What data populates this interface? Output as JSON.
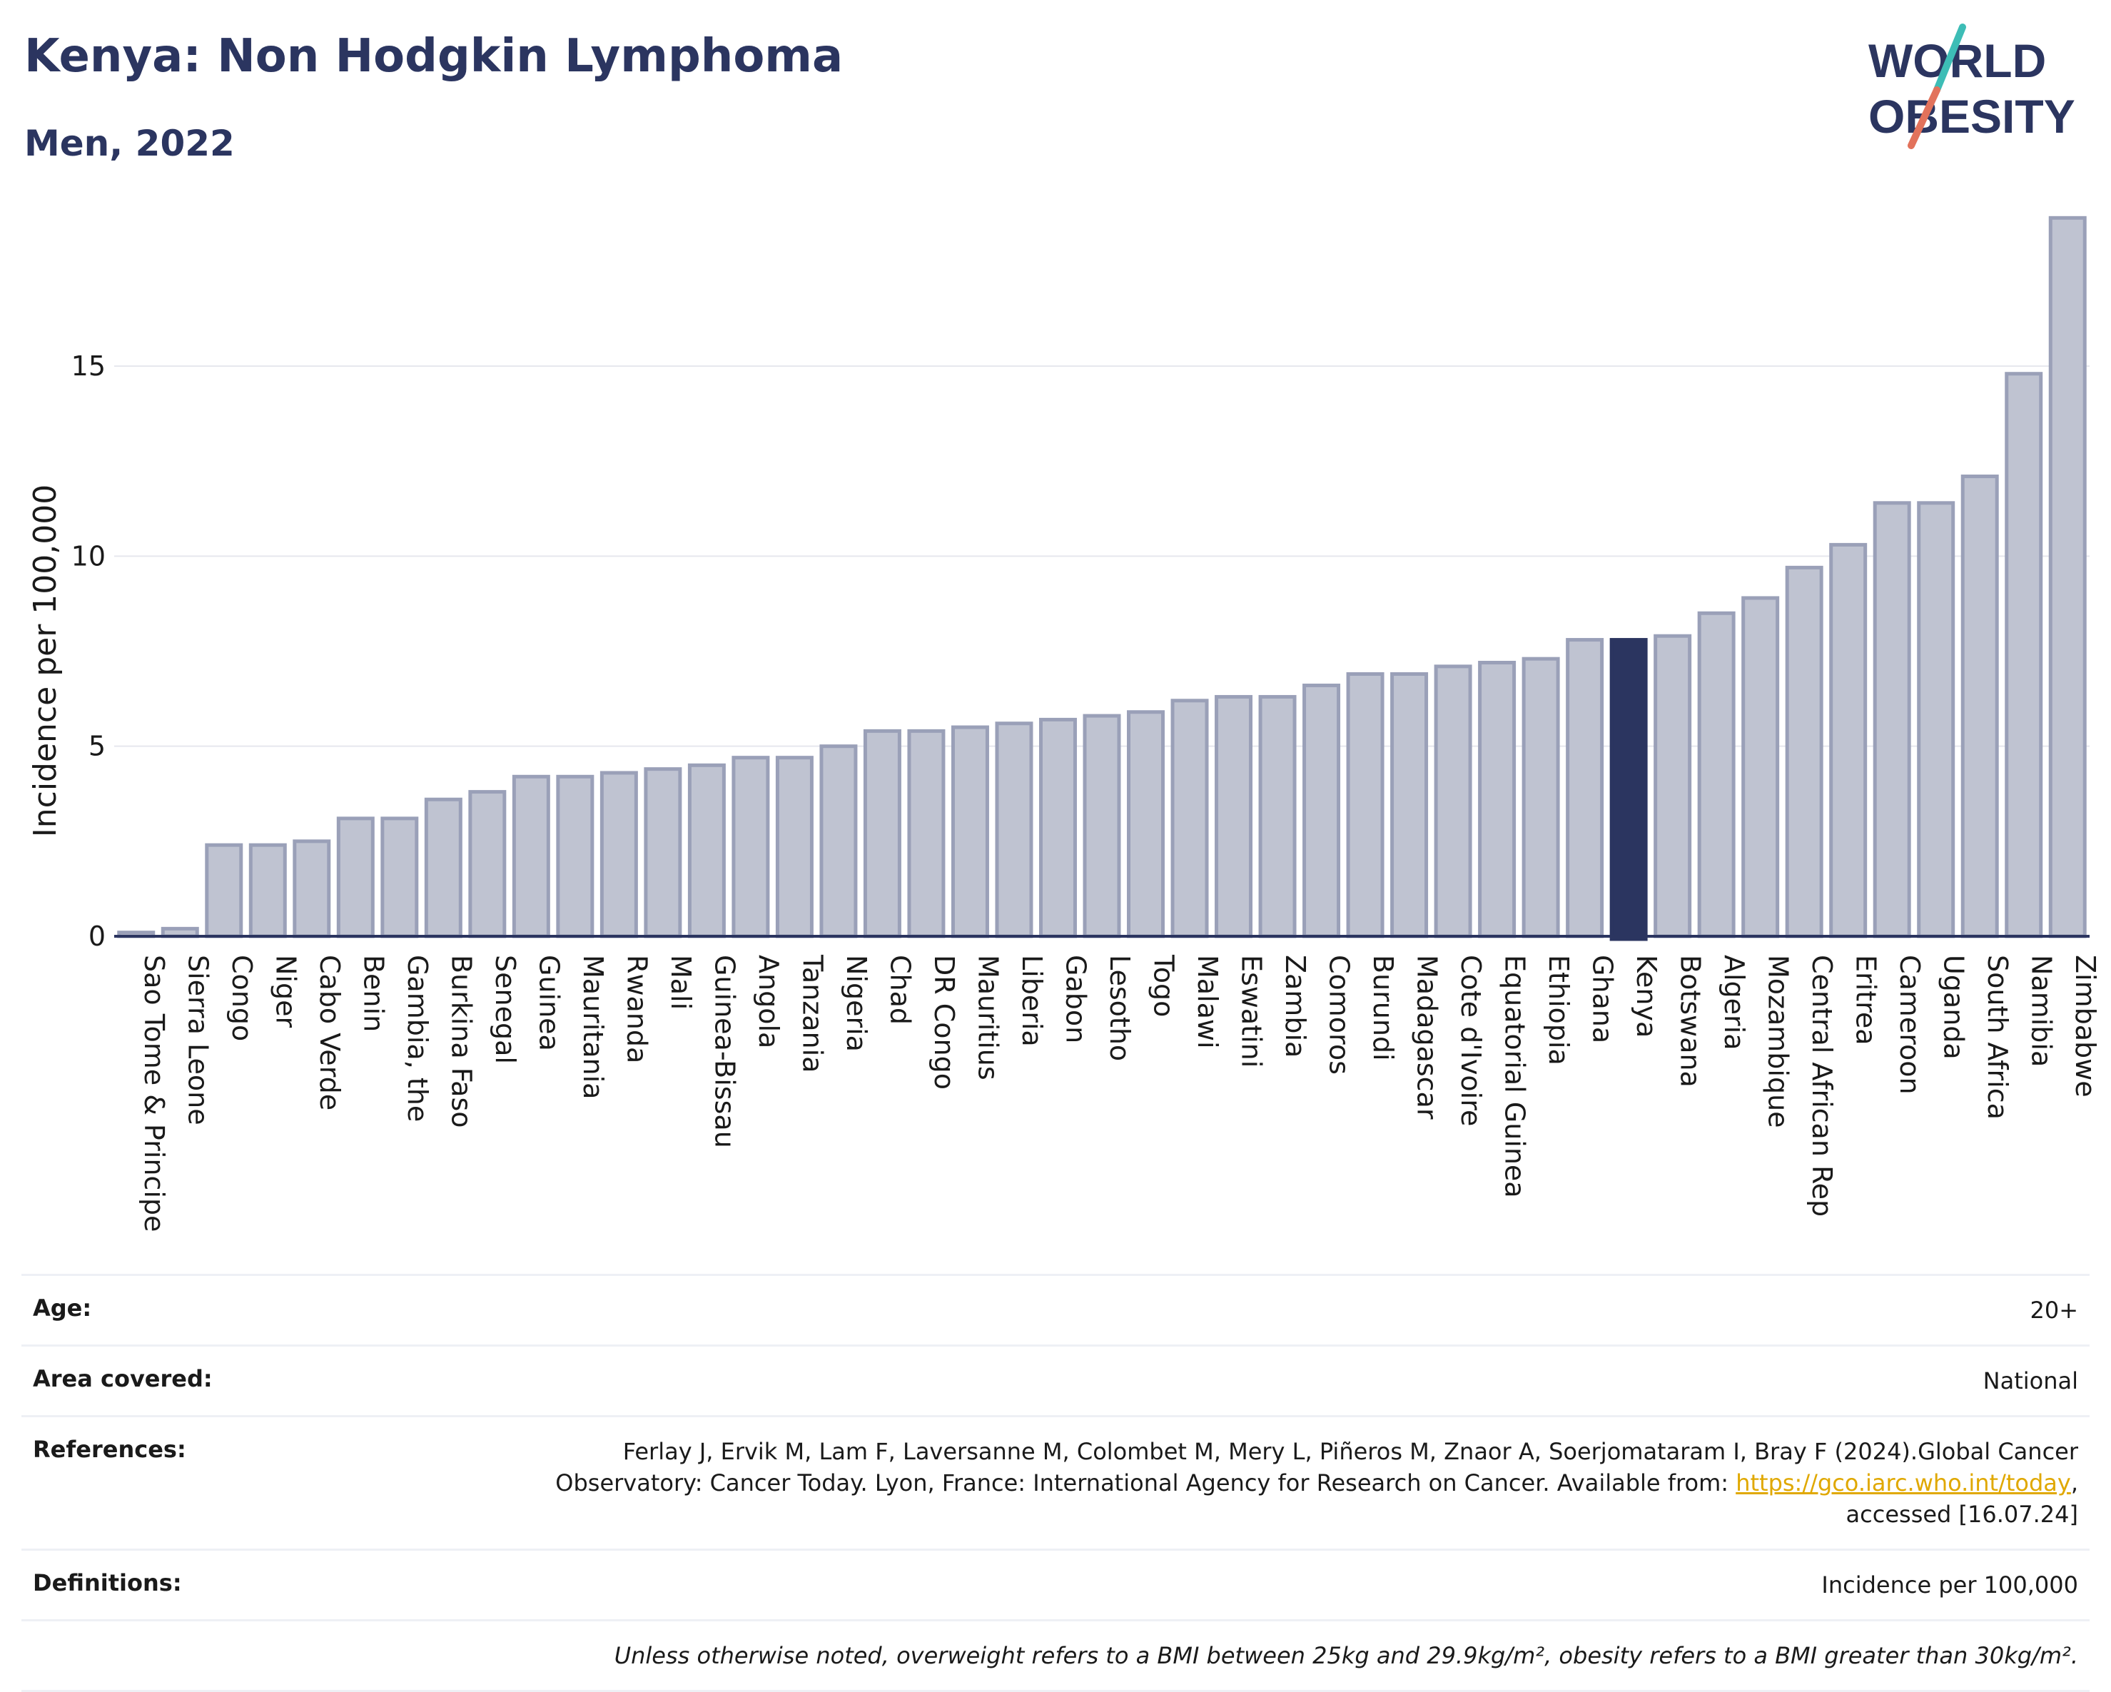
{
  "header": {
    "title": "Kenya: Non Hodgkin Lymphoma",
    "subtitle": "Men, 2022"
  },
  "logo": {
    "text_line1": "WORLD",
    "text_line2": "OBESITY",
    "colors": {
      "text": "#2b3560",
      "slash_top": "#3dbdb6",
      "slash_bottom": "#e2725b"
    }
  },
  "colors": {
    "bar_fill": "#bfc3d1",
    "bar_stroke": "#9aa0b8",
    "highlight_fill": "#2b3560",
    "axis": "#2b3560",
    "grid": "#e6e8ee"
  },
  "chart_data": {
    "type": "bar",
    "ylabel": "Incidence per 100,000",
    "ylim": [
      0,
      19
    ],
    "yticks": [
      0,
      5,
      10,
      15
    ],
    "grid": true,
    "highlight": "Kenya",
    "categories": [
      "Sao Tome & Principe",
      "Sierra Leone",
      "Congo",
      "Niger",
      "Cabo Verde",
      "Benin",
      "Gambia, the",
      "Burkina Faso",
      "Senegal",
      "Guinea",
      "Mauritania",
      "Rwanda",
      "Mali",
      "Guinea-Bissau",
      "Angola",
      "Tanzania",
      "Nigeria",
      "Chad",
      "DR Congo",
      "Mauritius",
      "Liberia",
      "Gabon",
      "Lesotho",
      "Togo",
      "Malawi",
      "Eswatini",
      "Zambia",
      "Comoros",
      "Burundi",
      "Madagascar",
      "Cote d'Ivoire",
      "Equatorial Guinea",
      "Ethiopia",
      "Ghana",
      "Kenya",
      "Botswana",
      "Algeria",
      "Mozambique",
      "Central African Rep",
      "Eritrea",
      "Cameroon",
      "Uganda",
      "South Africa",
      "Namibia",
      "Zimbabwe"
    ],
    "values": [
      0.1,
      0.2,
      2.4,
      2.4,
      2.5,
      3.1,
      3.1,
      3.6,
      3.8,
      4.2,
      4.2,
      4.3,
      4.4,
      4.5,
      4.7,
      4.7,
      5.0,
      5.4,
      5.4,
      5.5,
      5.6,
      5.7,
      5.8,
      5.9,
      6.2,
      6.3,
      6.3,
      6.6,
      6.9,
      6.9,
      7.1,
      7.2,
      7.3,
      7.8,
      7.8,
      7.9,
      8.5,
      8.9,
      9.7,
      10.3,
      11.4,
      11.4,
      12.1,
      14.8,
      18.9
    ]
  },
  "info": {
    "rows": [
      {
        "label": "Age:",
        "value": "20+"
      },
      {
        "label": "Area covered:",
        "value": "National"
      },
      {
        "label": "References:",
        "value_line1": "Ferlay J, Ervik M, Lam F, Laversanne M, Colombet M, Mery L, Piñeros M, Znaor A, Soerjomataram I, Bray F (2024).Global Cancer",
        "value_line2_pre": "Observatory: Cancer Today. Lyon, France: International Agency for Research on Cancer. Available from: ",
        "value_link": "https://gco.iarc.who.int/today",
        "value_line2_post": ",",
        "value_line3": "accessed [16.07.24]"
      },
      {
        "label": "Definitions:",
        "value": "Incidence per 100,000"
      }
    ],
    "note": "Unless otherwise noted, overweight refers to a BMI between 25kg and 29.9kg/m², obesity refers to a BMI greater than 30kg/m²."
  }
}
